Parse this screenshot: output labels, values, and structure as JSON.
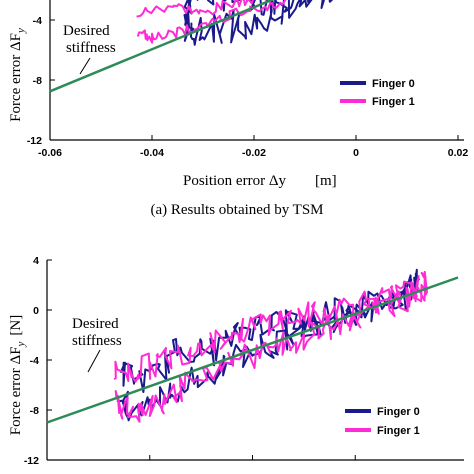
{
  "chart_data": [
    {
      "type": "line",
      "title": "",
      "caption": "(a) Results obtained by TSM",
      "xlabel": "Position error Δy",
      "xunit": "[m]",
      "ylabel": "Force error ΔF",
      "ylabel_sub": "y",
      "xlim": [
        -0.06,
        0.02
      ],
      "ylim": [
        -12,
        0
      ],
      "x_ticks": [
        "-0.06",
        "-0.04",
        "-0.02",
        "0",
        "0.02"
      ],
      "x_tick_values": [
        -0.06,
        -0.04,
        -0.02,
        0,
        0.02
      ],
      "y_ticks": [
        "-4",
        "-8",
        "-12"
      ],
      "y_tick_values": [
        -4,
        -8,
        -12
      ],
      "annotation": [
        "Desired",
        "stiffness"
      ],
      "legend_position": "bottom-right",
      "series": [
        {
          "name": "Finger 0",
          "color": "#1a1a8c",
          "style": "noisy",
          "x": [
            -0.033,
            -0.033,
            -0.032,
            -0.028,
            -0.022,
            -0.016,
            -0.01,
            -0.005,
            0.0,
            0.003,
            0.0,
            -0.006,
            -0.012,
            -0.018,
            -0.024,
            -0.03,
            -0.033
          ],
          "y": [
            -5.0,
            -3.0,
            -1.6,
            -2.2,
            -2.6,
            -2.6,
            -2.0,
            -1.4,
            -0.8,
            -0.4,
            -1.4,
            -2.4,
            -3.0,
            -3.8,
            -4.4,
            -4.8,
            -5.0
          ]
        },
        {
          "name": "Finger 1",
          "color": "#ff2bd6",
          "style": "smooth",
          "x": [
            -0.043,
            -0.036,
            -0.03,
            -0.024,
            -0.018,
            -0.012,
            -0.006,
            0.0,
            0.004,
            0.002,
            -0.004,
            -0.01,
            -0.016,
            -0.022,
            -0.028,
            -0.034,
            -0.04,
            -0.043
          ],
          "y": [
            -3.6,
            -3.0,
            -3.6,
            -2.8,
            -2.5,
            -2.2,
            -1.4,
            -0.9,
            -0.3,
            -1.0,
            -1.8,
            -2.4,
            -3.0,
            -3.4,
            -4.0,
            -4.8,
            -5.2,
            -4.8
          ]
        },
        {
          "name": "Desired stiffness",
          "color": "#2e8b57",
          "style": "line",
          "x": [
            -0.06,
            0.0
          ],
          "y": [
            -8.75,
            -0.35
          ]
        }
      ]
    },
    {
      "type": "line",
      "title": "",
      "caption": "",
      "xlabel": "",
      "ylabel": "Force error ΔF",
      "ylabel_sub": "y",
      "yunit": "[N]",
      "xlim": [
        -0.06,
        0.02
      ],
      "ylim": [
        -12,
        4
      ],
      "x_ticks": [],
      "y_ticks": [
        "4",
        "0",
        "-4",
        "-8",
        "-12"
      ],
      "y_tick_values": [
        4,
        0,
        -4,
        -8,
        -12
      ],
      "annotation": [
        "Desired",
        "stiffness"
      ],
      "legend_position": "bottom-right",
      "series": [
        {
          "name": "Finger 0",
          "color": "#1a1a8c",
          "style": "noisy",
          "x": [
            -0.046,
            -0.04,
            -0.034,
            -0.028,
            -0.022,
            -0.016,
            -0.01,
            -0.004,
            0.002,
            0.008,
            0.012,
            0.01,
            0.004,
            -0.002,
            -0.008,
            -0.014,
            -0.02,
            -0.026,
            -0.032,
            -0.038,
            -0.044,
            -0.046
          ],
          "y": [
            -5.0,
            -5.6,
            -3.0,
            -3.4,
            -1.6,
            -0.8,
            -1.0,
            0.2,
            0.4,
            1.0,
            2.4,
            1.2,
            0.0,
            -0.6,
            -1.2,
            -2.4,
            -3.2,
            -4.4,
            -5.6,
            -7.4,
            -8.0,
            -7.0
          ]
        },
        {
          "name": "Finger 1",
          "color": "#ff2bd6",
          "style": "noisy",
          "x": [
            -0.047,
            -0.042,
            -0.036,
            -0.03,
            -0.024,
            -0.018,
            -0.012,
            -0.006,
            0.0,
            0.006,
            0.012,
            0.014,
            0.01,
            0.004,
            -0.002,
            -0.008,
            -0.014,
            -0.02,
            -0.026,
            -0.032,
            -0.038,
            -0.044,
            -0.047
          ],
          "y": [
            -5.0,
            -4.8,
            -3.8,
            -2.6,
            -2.0,
            -1.0,
            -0.6,
            -0.2,
            0.6,
            0.8,
            1.6,
            2.2,
            0.8,
            0.2,
            -0.8,
            -2.0,
            -2.8,
            -3.6,
            -4.2,
            -5.8,
            -7.2,
            -8.2,
            -7.0
          ]
        },
        {
          "name": "Desired stiffness",
          "color": "#2e8b57",
          "style": "line",
          "x": [
            -0.06,
            0.02
          ],
          "y": [
            -9.0,
            2.6
          ]
        }
      ]
    }
  ]
}
